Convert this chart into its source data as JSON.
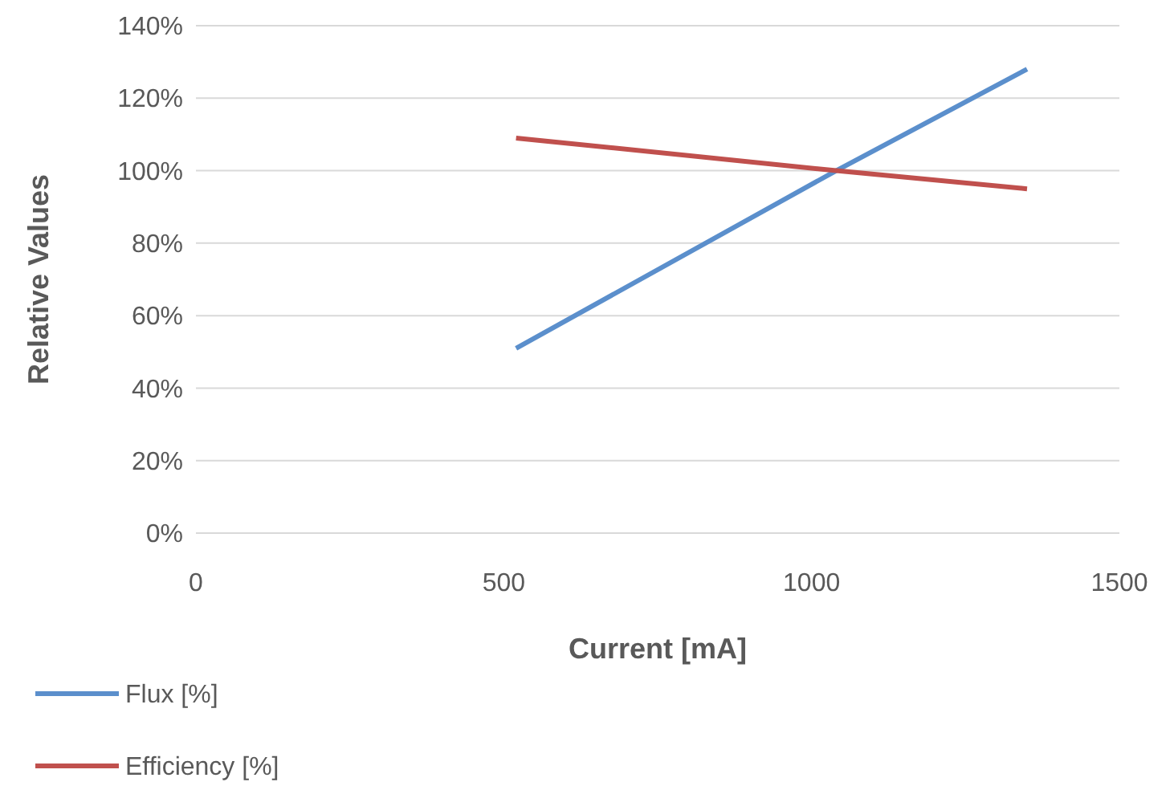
{
  "chart_data": {
    "type": "line",
    "xlabel": "Current [mA]",
    "ylabel": "Relative Values",
    "x": [
      520,
      1040,
      1350
    ],
    "series": [
      {
        "name": "Flux [%]",
        "color": "#5b8fcc",
        "values": [
          51,
          100,
          128
        ]
      },
      {
        "name": "Efficiency [%]",
        "color": "#c0504d",
        "values": [
          109,
          100,
          95
        ]
      }
    ],
    "xlim": [
      0,
      1500
    ],
    "xticks": [
      0,
      500,
      1000,
      1500
    ],
    "ylim": [
      0,
      140
    ],
    "yticks": [
      {
        "value": 0,
        "label": "0%"
      },
      {
        "value": 20,
        "label": "20%"
      },
      {
        "value": 40,
        "label": "40%"
      },
      {
        "value": 60,
        "label": "60%"
      },
      {
        "value": 80,
        "label": "80%"
      },
      {
        "value": 100,
        "label": "100%"
      },
      {
        "value": 120,
        "label": "120%"
      },
      {
        "value": 140,
        "label": "140%"
      }
    ],
    "grid": "y",
    "legend": "bottom",
    "marker": "none",
    "line_style": "solid"
  }
}
